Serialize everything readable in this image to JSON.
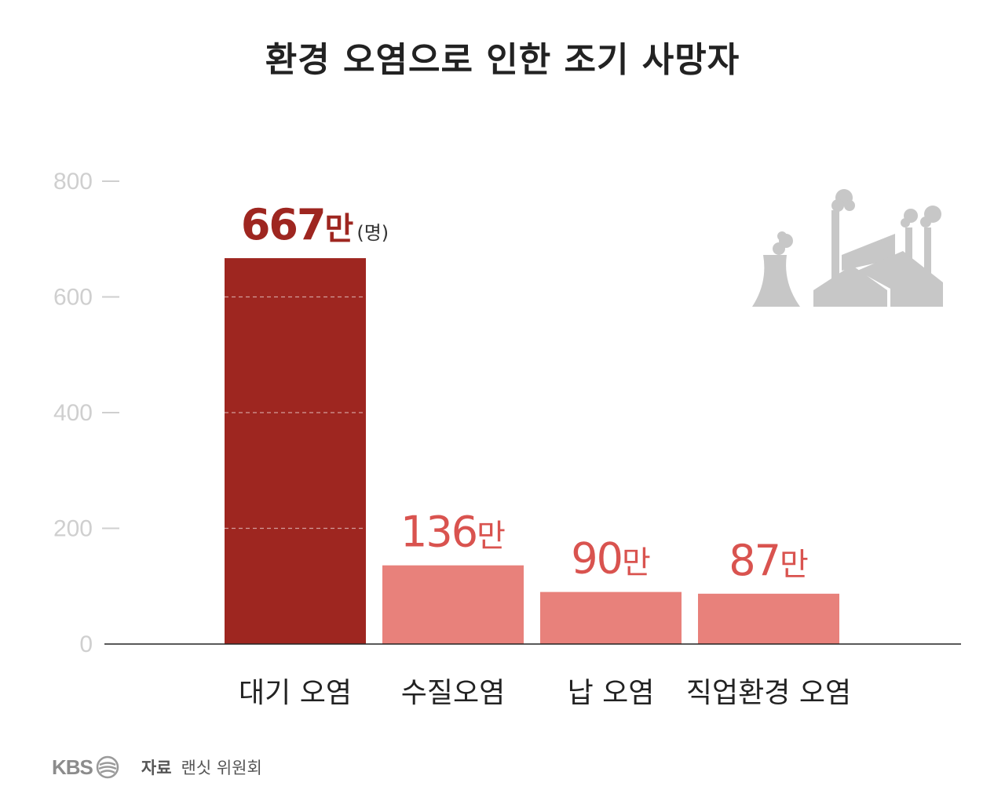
{
  "colors": {
    "highlight": "#9e2620",
    "bar": "#e8817b",
    "axis": "#222222",
    "tick": "#cfcfcf",
    "icon": "#c7c7c7"
  },
  "icons": [
    "factory-icon",
    "kbs-logo-icon"
  ],
  "chart_data": {
    "type": "bar",
    "title": "환경 오염으로 인한 조기 사망자",
    "categories": [
      "대기 오염",
      "수질오염",
      "납 오염",
      "직업환경 오염"
    ],
    "values": [
      667,
      136,
      90,
      87
    ],
    "value_labels": [
      {
        "number": "667",
        "unit": "만",
        "suffix": "(명)"
      },
      {
        "number": "136",
        "unit": "만",
        "suffix": ""
      },
      {
        "number": "90",
        "unit": "만",
        "suffix": ""
      },
      {
        "number": "87",
        "unit": "만",
        "suffix": ""
      }
    ],
    "y_ticks": [
      0,
      200,
      400,
      600,
      800
    ],
    "ylim": [
      0,
      800
    ],
    "grid": "dashed lines inside highlighted bar only",
    "highlight_index": 0
  },
  "footer": {
    "brand": "KBS",
    "source_label": "자료",
    "source_text": "랜싯 위원회"
  }
}
